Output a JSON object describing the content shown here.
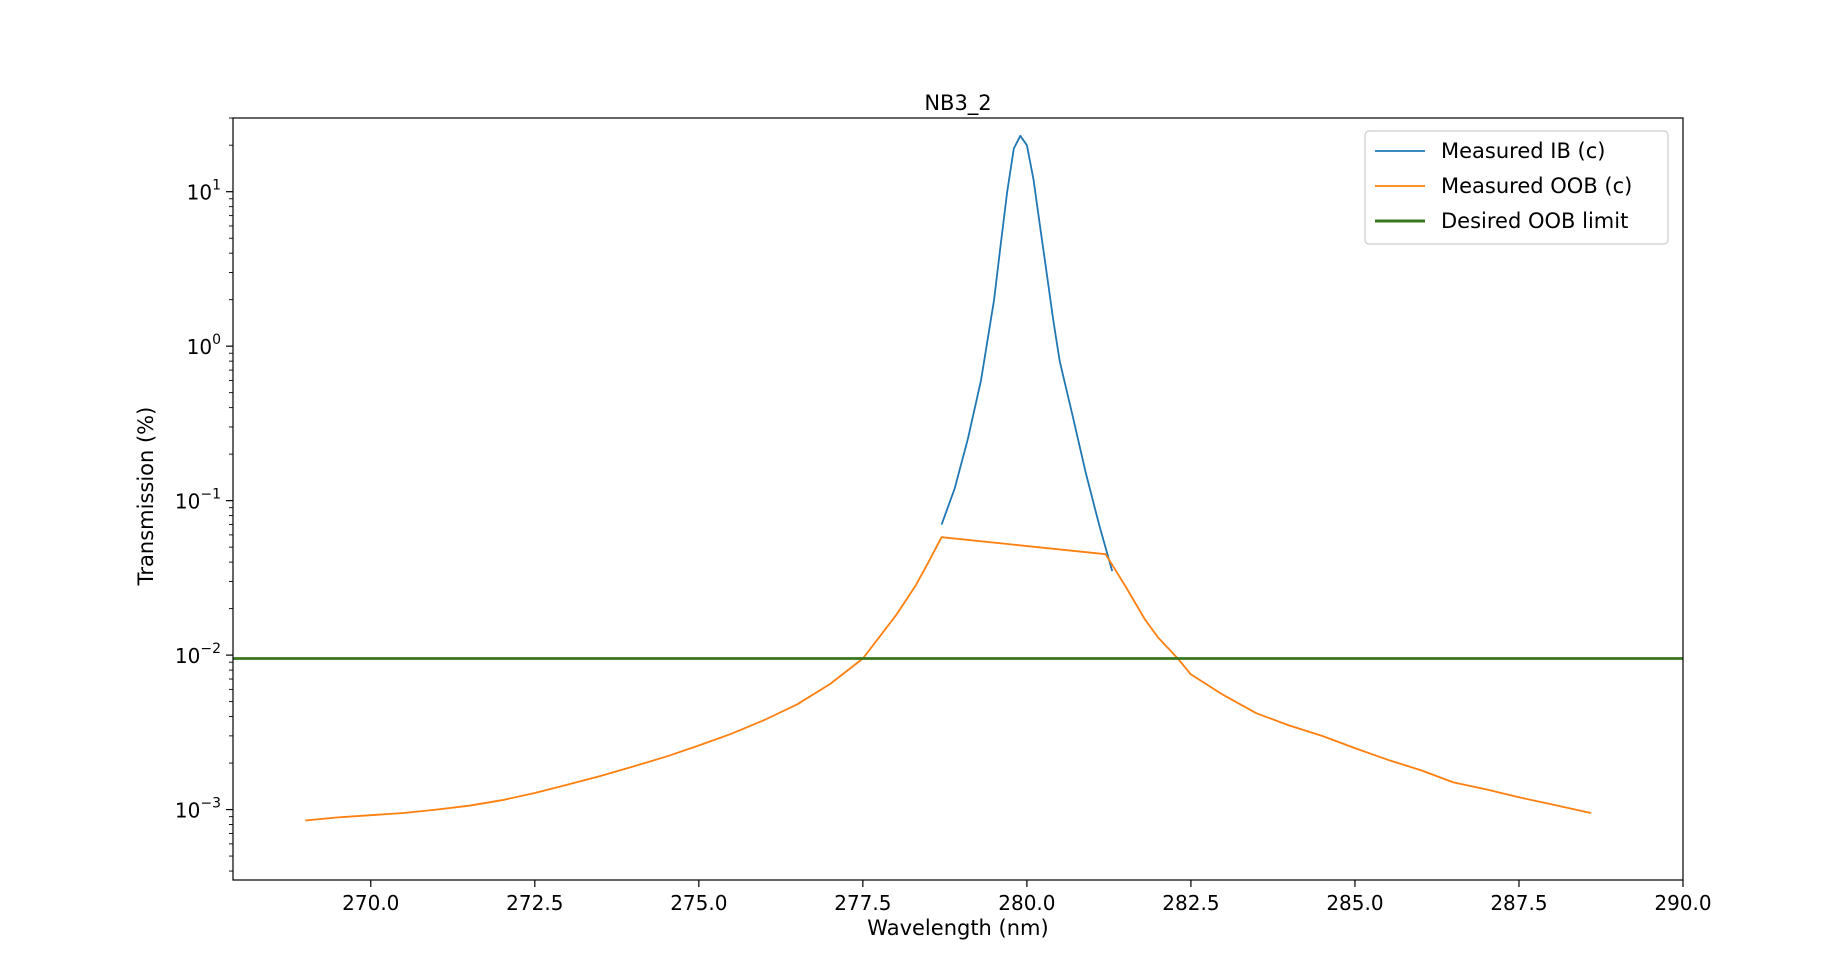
{
  "chart_data": {
    "type": "line",
    "title": "NB3_2",
    "xlabel": "Wavelength (nm)",
    "ylabel": "Transmission (%)",
    "xlim": [
      267.9,
      290.0
    ],
    "ylim": [
      0.00035,
      30
    ],
    "yscale": "log",
    "grid": false,
    "legend_position": "top-right",
    "x_ticks": [
      {
        "value": 270.0,
        "label": "270.0"
      },
      {
        "value": 272.5,
        "label": "272.5"
      },
      {
        "value": 275.0,
        "label": "275.0"
      },
      {
        "value": 277.5,
        "label": "277.5"
      },
      {
        "value": 280.0,
        "label": "280.0"
      },
      {
        "value": 282.5,
        "label": "282.5"
      },
      {
        "value": 285.0,
        "label": "285.0"
      },
      {
        "value": 287.5,
        "label": "287.5"
      },
      {
        "value": 290.0,
        "label": "290.0"
      }
    ],
    "y_ticks": [
      {
        "value": 0.001,
        "base": "10",
        "exp": "−3"
      },
      {
        "value": 0.01,
        "base": "10",
        "exp": "−2"
      },
      {
        "value": 0.1,
        "base": "10",
        "exp": "−1"
      },
      {
        "value": 1,
        "base": "10",
        "exp": "0"
      },
      {
        "value": 10,
        "base": "10",
        "exp": "1"
      }
    ],
    "series": [
      {
        "name": "Measured IB (c)",
        "color": "#1f77b4",
        "x": [
          278.7,
          278.9,
          279.1,
          279.3,
          279.5,
          279.6,
          279.7,
          279.8,
          279.9,
          280.0,
          280.1,
          280.2,
          280.3,
          280.4,
          280.5,
          280.7,
          280.9,
          281.1,
          281.3
        ],
        "y": [
          0.07,
          0.12,
          0.25,
          0.6,
          2.0,
          4.5,
          10.0,
          19.0,
          23.0,
          20.0,
          12.0,
          6.0,
          3.0,
          1.5,
          0.8,
          0.35,
          0.15,
          0.07,
          0.035
        ]
      },
      {
        "name": "Measured OOB (c)",
        "color": "#ff7f0e",
        "x": [
          269.0,
          269.5,
          270.0,
          270.5,
          271.0,
          271.5,
          272.0,
          272.5,
          273.0,
          273.5,
          274.0,
          274.5,
          275.0,
          275.5,
          276.0,
          276.5,
          277.0,
          277.5,
          278.0,
          278.3,
          278.5,
          278.7,
          281.2,
          281.5,
          281.8,
          282.0,
          282.3,
          282.5,
          283.0,
          283.5,
          284.0,
          284.5,
          285.0,
          285.5,
          286.0,
          286.5,
          287.0,
          287.5,
          288.0,
          288.5,
          288.6
        ],
        "y": [
          0.00085,
          0.00089,
          0.00092,
          0.00095,
          0.001,
          0.00106,
          0.00115,
          0.00128,
          0.00145,
          0.00165,
          0.0019,
          0.0022,
          0.0026,
          0.0031,
          0.0038,
          0.0048,
          0.0065,
          0.0095,
          0.018,
          0.028,
          0.04,
          0.058,
          0.045,
          0.028,
          0.017,
          0.013,
          0.0095,
          0.0075,
          0.0055,
          0.0042,
          0.0035,
          0.003,
          0.0025,
          0.0021,
          0.0018,
          0.0015,
          0.00135,
          0.0012,
          0.00108,
          0.00097,
          0.00095
        ]
      },
      {
        "name": "Desired OOB limit",
        "color": "#38761d",
        "x": [
          267.9,
          290.0
        ],
        "y": [
          0.0095,
          0.0095
        ]
      }
    ]
  }
}
